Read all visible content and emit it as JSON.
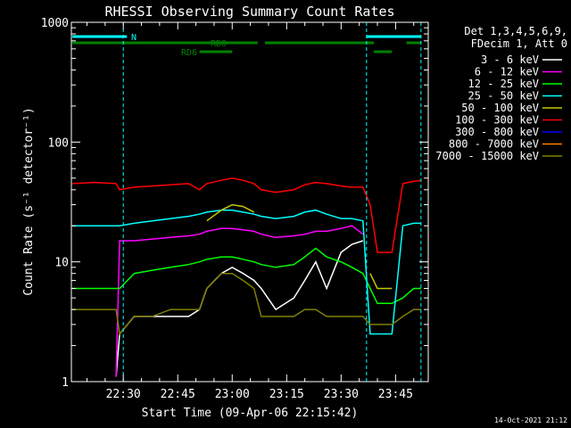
{
  "chart_data": {
    "type": "line",
    "title": "RHESSI Observing Summary Count Rates",
    "xlabel": "Start Time (09-Apr-06 22:15:42)",
    "ylabel": "Count Rate (s⁻¹ detector⁻¹)",
    "y_scale": "log",
    "ylim": [
      1,
      1000
    ],
    "xlim": [
      "22:15:42",
      "23:54:00"
    ],
    "x_ticks": [
      "22:30",
      "22:45",
      "23:00",
      "23:15",
      "23:30",
      "23:45"
    ],
    "y_ticks": [
      "1",
      "10",
      "100",
      "1000"
    ],
    "info_lines": [
      "Det 1,3,4,5,6,9,",
      "FDecim 1, Att 0"
    ],
    "timestamp": "14-Oct-2021 21:12",
    "flags": [
      {
        "label": "N",
        "color": "#00ffff",
        "segments": [
          [
            "22:16",
            "22:31"
          ],
          [
            "23:37",
            "23:52"
          ]
        ]
      },
      {
        "label": "RD0",
        "color": "#008000",
        "segments": [
          [
            "22:16",
            "23:07"
          ],
          [
            "23:09",
            "23:39"
          ],
          [
            "23:48",
            "23:52"
          ]
        ]
      },
      {
        "label": "RD6",
        "color": "#008000",
        "segments": [
          [
            "22:51",
            "23:00"
          ],
          [
            "23:39",
            "23:44"
          ]
        ]
      }
    ],
    "vlines": [
      "22:30",
      "23:37",
      "23:52"
    ],
    "x": [
      "22:16",
      "22:22",
      "22:28",
      "22:29",
      "22:33",
      "22:38",
      "22:43",
      "22:48",
      "22:51",
      "22:53",
      "22:57",
      "23:00",
      "23:03",
      "23:06",
      "23:08",
      "23:12",
      "23:17",
      "23:20",
      "23:23",
      "23:26",
      "23:30",
      "23:33",
      "23:36",
      "23:38",
      "23:40",
      "23:44",
      "23:47",
      "23:50",
      "23:52"
    ],
    "series": [
      {
        "name": "3 - 6 keV",
        "color": "#ffffff",
        "values": [
          null,
          null,
          1.1,
          2.5,
          3.5,
          3.5,
          3.5,
          3.5,
          4,
          6,
          8,
          9,
          8,
          7,
          6,
          4,
          5,
          7,
          10,
          6,
          12,
          14,
          15,
          null,
          null,
          null,
          null,
          null,
          null
        ]
      },
      {
        "name": "6 - 12 keV",
        "color": "#ff00ff",
        "values": [
          null,
          null,
          1.1,
          15,
          15,
          15.5,
          16,
          16.5,
          17,
          18,
          19,
          19,
          18.5,
          18,
          17,
          16,
          16.5,
          17,
          18,
          18,
          19,
          20,
          17,
          null,
          null,
          null,
          null,
          null,
          null
        ]
      },
      {
        "name": "12 - 25 keV",
        "color": "#00ff00",
        "values": [
          6,
          6,
          6,
          6,
          8,
          8.5,
          9,
          9.5,
          10,
          10.5,
          11,
          11,
          10.5,
          10,
          9.5,
          9,
          9.5,
          11,
          13,
          11,
          10,
          9,
          8,
          6,
          4.5,
          4.5,
          5,
          6,
          6
        ]
      },
      {
        "name": "25 - 50 keV",
        "color": "#00ffff",
        "values": [
          20,
          20,
          20,
          20,
          21,
          22,
          23,
          24,
          25,
          26,
          27,
          27,
          26,
          25,
          24,
          23,
          24,
          26,
          27,
          25,
          23,
          23,
          22,
          2.5,
          2.5,
          2.5,
          20,
          21,
          21
        ]
      },
      {
        "name": "50 - 100 keV",
        "color": "#c8c800",
        "values": [
          null,
          null,
          null,
          null,
          null,
          null,
          null,
          null,
          null,
          22,
          27,
          30,
          29,
          26,
          null,
          null,
          null,
          null,
          null,
          null,
          null,
          null,
          null,
          8,
          6,
          6,
          null,
          null,
          null
        ]
      },
      {
        "name": "100 - 300 keV",
        "color": "#ff0000",
        "values": [
          45,
          46,
          45,
          40,
          42,
          43,
          44,
          45,
          40,
          45,
          48,
          50,
          48,
          45,
          40,
          38,
          40,
          44,
          46,
          45,
          43,
          42,
          42,
          30,
          12,
          12,
          45,
          47,
          48
        ]
      },
      {
        "name": "300 - 800 keV",
        "color": "#0000ff",
        "values": [
          null,
          null,
          null,
          null,
          null,
          null,
          null,
          null,
          null,
          null,
          null,
          null,
          null,
          null,
          null,
          null,
          null,
          null,
          null,
          null,
          null,
          null,
          null,
          null,
          null,
          null,
          null,
          null,
          null
        ]
      },
      {
        "name": "800 - 7000 keV",
        "color": "#ff8000",
        "values": [
          null,
          null,
          null,
          null,
          null,
          null,
          null,
          null,
          null,
          null,
          null,
          null,
          null,
          null,
          null,
          null,
          null,
          null,
          null,
          null,
          null,
          null,
          null,
          null,
          null,
          null,
          null,
          null,
          null
        ]
      },
      {
        "name": "7000 - 15000 keV",
        "color": "#808000",
        "values": [
          4,
          4,
          4,
          2.5,
          3.5,
          3.5,
          4,
          4,
          4,
          6,
          8,
          8,
          7,
          6,
          3.5,
          3.5,
          3.5,
          4,
          4,
          3.5,
          3.5,
          3.5,
          3.5,
          3,
          3,
          3,
          3.5,
          4,
          4
        ]
      }
    ]
  }
}
